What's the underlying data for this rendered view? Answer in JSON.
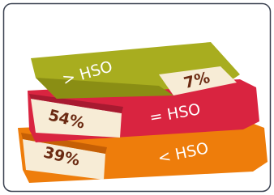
{
  "books": [
    {
      "label": "> HSO",
      "share": "7%"
    },
    {
      "label": "= HSO",
      "share": "54%"
    },
    {
      "label": "< HSO",
      "share": "39%"
    }
  ]
}
